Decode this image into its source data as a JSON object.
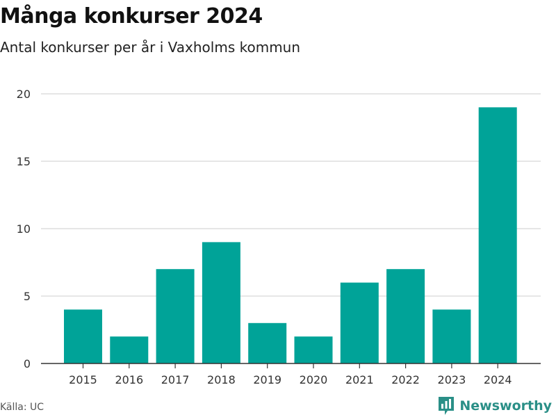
{
  "header": {
    "title": "Många konkurser 2024",
    "subtitle": "Antal konkurser per år i Vaxholms kommun"
  },
  "footer": {
    "source": "Källa: UC",
    "brand": "Newsworthy",
    "brand_icon": "bar-chart-icon"
  },
  "colors": {
    "bar": "#00a398",
    "grid": "#dddddd",
    "axis": "#333333",
    "tick_text": "#333333",
    "brand": "#2a8f87"
  },
  "chart_data": {
    "type": "bar",
    "categories": [
      "2015",
      "2016",
      "2017",
      "2018",
      "2019",
      "2020",
      "2021",
      "2022",
      "2023",
      "2024"
    ],
    "values": [
      4,
      2,
      7,
      9,
      3,
      2,
      6,
      7,
      4,
      19
    ],
    "ylim": [
      0,
      20
    ],
    "yticks": [
      0,
      5,
      10,
      15,
      20
    ],
    "grid": true,
    "xlabel": "",
    "ylabel": ""
  }
}
